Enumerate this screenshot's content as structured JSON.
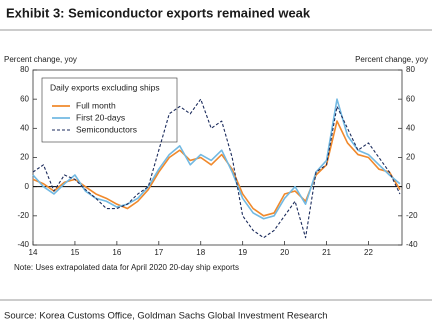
{
  "chart_data": {
    "type": "line",
    "title": "Exhibit 3: Semiconductor exports remained weak",
    "y_label": "Percent change, yoy",
    "y2_label": "Percent change, yoy",
    "legend_title": "Daily exports excluding ships",
    "note": "Note: Uses extrapolated data for April 2020 20-day ship exports",
    "source": "Source: Korea Customs Office, Goldman Sachs Global Investment Research",
    "x": [
      14,
      14.25,
      14.5,
      14.75,
      15,
      15.25,
      15.5,
      15.75,
      16,
      16.25,
      16.5,
      16.75,
      17,
      17.25,
      17.5,
      17.75,
      18,
      18.25,
      18.5,
      18.75,
      19,
      19.25,
      19.5,
      19.75,
      20,
      20.25,
      20.5,
      20.75,
      21,
      21.25,
      21.5,
      21.75,
      22,
      22.25,
      22.5,
      22.75
    ],
    "series": [
      {
        "name": "Full month",
        "color": "#f0892c",
        "line_style": "solid",
        "values": [
          5,
          2,
          -3,
          3,
          5,
          0,
          -5,
          -8,
          -12,
          -15,
          -10,
          -2,
          10,
          20,
          25,
          18,
          20,
          15,
          22,
          12,
          -5,
          -15,
          -20,
          -18,
          -5,
          -3,
          -10,
          8,
          15,
          45,
          30,
          22,
          20,
          12,
          10,
          -2
        ]
      },
      {
        "name": "First 20-days",
        "color": "#72b9e2",
        "line_style": "solid",
        "values": [
          8,
          0,
          -5,
          2,
          8,
          -3,
          -8,
          -10,
          -14,
          -12,
          -8,
          0,
          12,
          22,
          28,
          15,
          22,
          18,
          25,
          10,
          -8,
          -18,
          -22,
          -20,
          -8,
          0,
          -12,
          10,
          18,
          60,
          35,
          25,
          22,
          15,
          8,
          2
        ]
      },
      {
        "name": "Semiconductors",
        "color": "#1b2b5c",
        "line_style": "dashed",
        "values": [
          10,
          15,
          -3,
          8,
          5,
          -2,
          -8,
          -15,
          -15,
          -12,
          -5,
          0,
          25,
          50,
          55,
          50,
          60,
          40,
          45,
          20,
          -20,
          -30,
          -35,
          -30,
          -20,
          -10,
          -35,
          10,
          15,
          55,
          40,
          25,
          30,
          20,
          10,
          -5
        ]
      }
    ],
    "xlim": [
      14,
      22.8
    ],
    "xticks": [
      14,
      15,
      16,
      17,
      18,
      19,
      20,
      21,
      22
    ],
    "ylim": [
      -40,
      80
    ],
    "yticks": [
      -40,
      -20,
      0,
      20,
      40,
      60,
      80
    ],
    "y2lim": [
      -40,
      80
    ],
    "y2ticks": [
      -40,
      -20,
      0,
      20,
      40,
      60,
      80
    ]
  }
}
